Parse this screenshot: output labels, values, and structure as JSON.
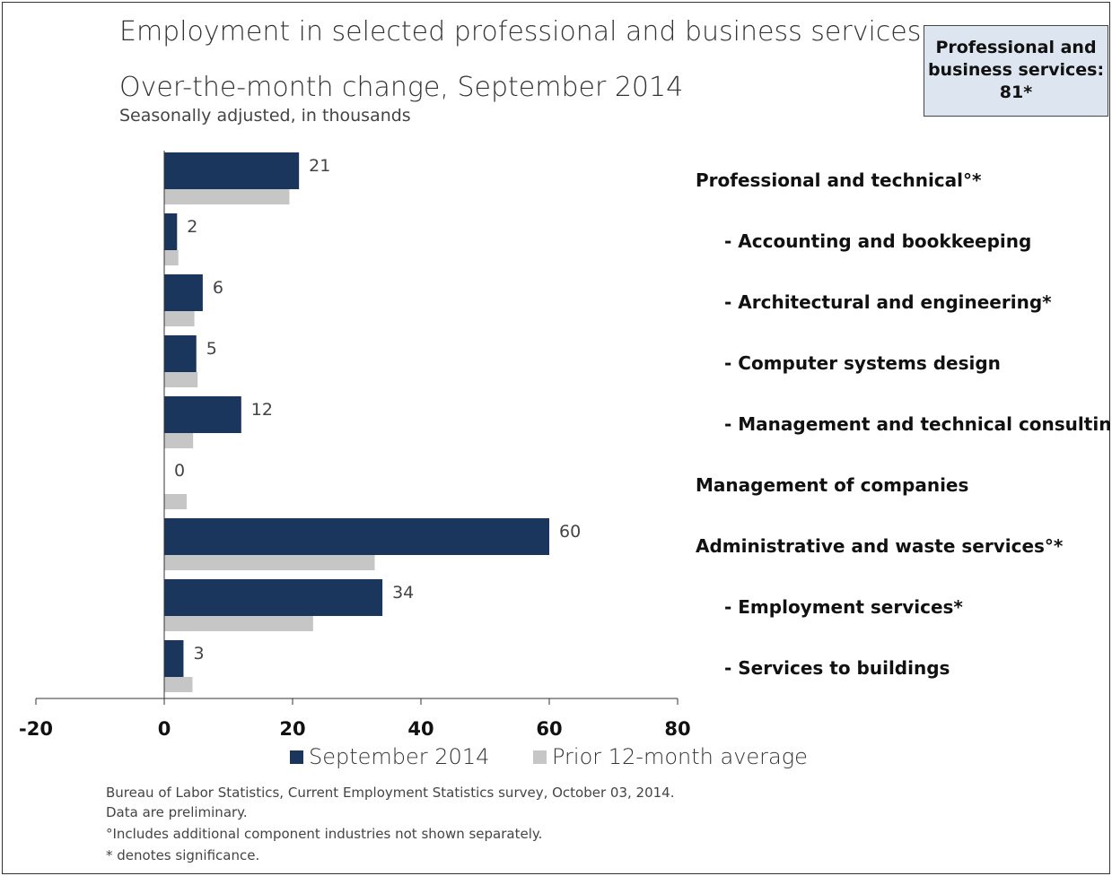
{
  "chart_data": {
    "type": "bar",
    "orientation": "horizontal",
    "title": "Employment in selected professional and business services",
    "subtitle": "Over-the-month change, September 2014",
    "note": "Seasonally adjusted, in thousands",
    "categories": [
      "Professional and technical°*",
      "- Accounting and bookkeeping",
      "- Architectural and engineering*",
      "- Computer systems design",
      "- Management and technical consulting",
      "Management of companies",
      "Administrative and waste services°*",
      "- Employment services*",
      "- Services to buildings"
    ],
    "series": [
      {
        "name": "September 2014",
        "values": [
          21,
          2,
          6,
          5,
          12,
          0,
          60,
          34,
          3
        ],
        "labels": [
          "21",
          "2",
          "6",
          "5",
          "12",
          "0",
          "60",
          "34",
          "3"
        ],
        "color": "#1b365d"
      },
      {
        "name": "Prior 12-month average",
        "values": [
          19.5,
          2.2,
          4.7,
          5.2,
          4.5,
          3.5,
          32.8,
          23.2,
          4.4
        ],
        "color": "#c6c6c6"
      }
    ],
    "xlim": [
      -20,
      80
    ],
    "xticks": [
      -20,
      0,
      20,
      40,
      60,
      80
    ],
    "xtick_labels": [
      "-20",
      "0",
      "20",
      "40",
      "60",
      "80"
    ],
    "grid": false,
    "legend": "bottom"
  },
  "callout": {
    "line1": "Professional and",
    "line2": "business services:",
    "line3": "81*"
  },
  "legend": {
    "september": "September 2014",
    "prior": "Prior 12-month average"
  },
  "footer": {
    "source": "Bureau of Labor Statistics, Current Employment Statistics survey, October 03, 2014.",
    "preliminary": "Data are preliminary.",
    "includes": "°Includes additional component industries not shown separately.",
    "significance": "* denotes significance."
  }
}
